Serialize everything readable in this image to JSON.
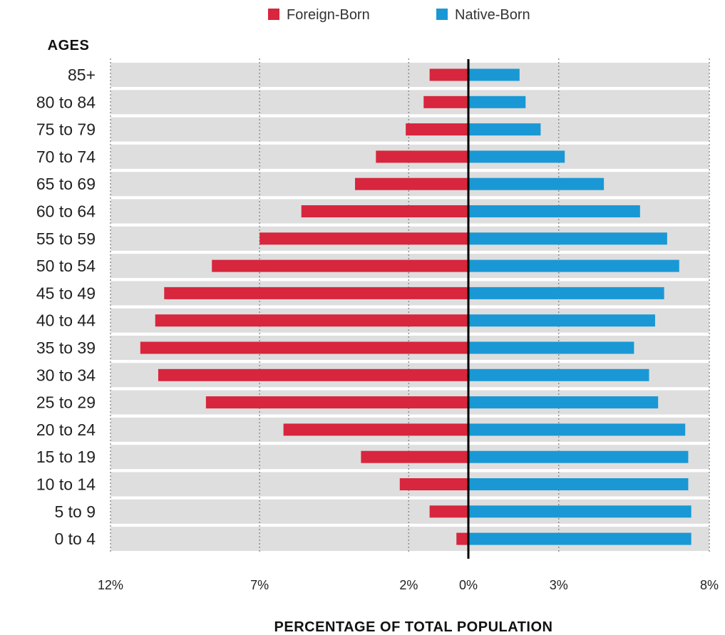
{
  "chart_data": {
    "type": "bar",
    "orientation": "horizontal",
    "layout": "population-pyramid",
    "yaxis_title": "AGES",
    "xaxis_title": "PERCENTAGE OF TOTAL POPULATION",
    "categories": [
      "85+",
      "80 to 84",
      "75 to 79",
      "70 to 74",
      "65 to 69",
      "60 to 64",
      "55 to 59",
      "50 to 54",
      "45 to 49",
      "40 to 44",
      "35 to 39",
      "30 to 34",
      "25 to 29",
      "20 to 24",
      "15 to 19",
      "10 to 14",
      "5 to 9",
      "0 to 4"
    ],
    "series": [
      {
        "name": "Foreign-Born",
        "color": "#d7263d",
        "side": "left",
        "values": [
          1.3,
          1.5,
          2.1,
          3.1,
          3.8,
          5.6,
          7.0,
          8.6,
          10.2,
          10.5,
          11.0,
          10.4,
          8.8,
          6.2,
          3.6,
          2.3,
          1.3,
          0.4
        ]
      },
      {
        "name": "Native-Born",
        "color": "#1a98d5",
        "side": "right",
        "values": [
          1.7,
          1.9,
          2.4,
          3.2,
          4.5,
          5.7,
          6.6,
          7.0,
          6.5,
          6.2,
          5.5,
          6.0,
          6.3,
          7.2,
          7.3,
          7.3,
          7.4,
          7.4
        ]
      }
    ],
    "xlim_left": [
      0,
      12
    ],
    "xlim_right": [
      0,
      8
    ],
    "tick_labels": [
      "12%",
      "7%",
      "2%",
      "0%",
      "3%",
      "8%"
    ],
    "tick_values_left": [
      12,
      7,
      2
    ],
    "tick_values_right": [
      0,
      3,
      8
    ],
    "grid": true,
    "legend_position": "top-center"
  }
}
